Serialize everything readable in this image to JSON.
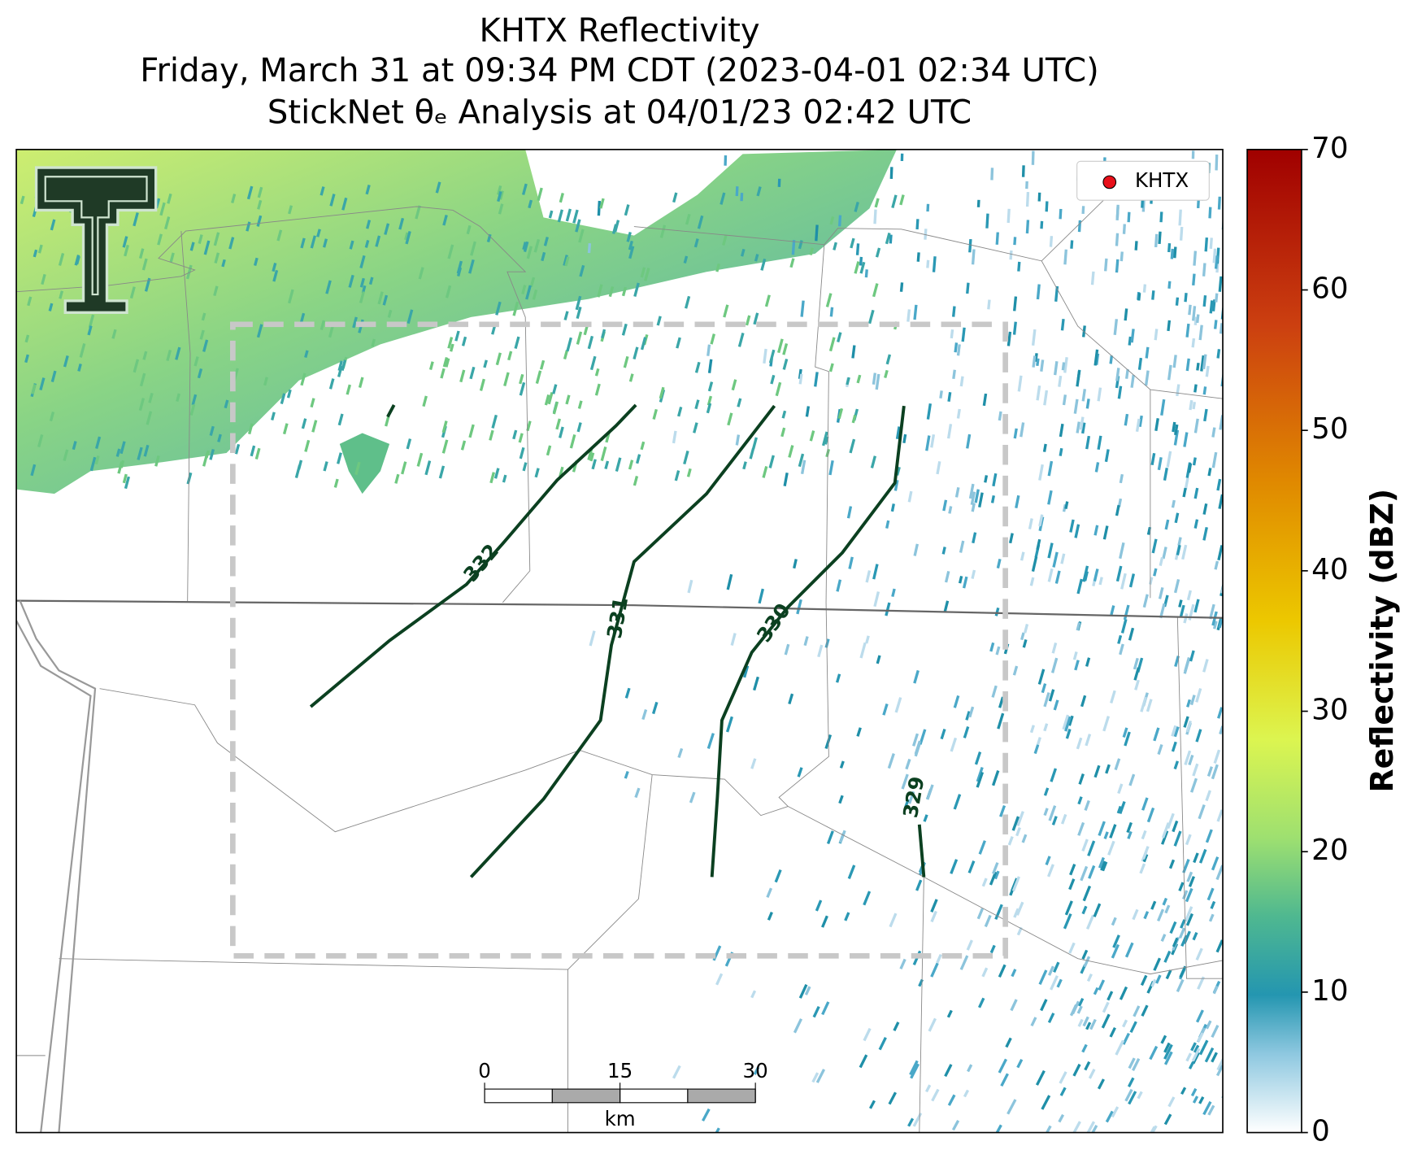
{
  "title_lines": [
    "KHTX Reflectivity",
    "Friday, March 31 at 09:34 PM CDT (2023-04-01 02:34 UTC)",
    "StickNet θₑ Analysis at 04/01/23 02:42 UTC"
  ],
  "legend": {
    "label": "KHTX",
    "color": "#e8101a"
  },
  "contours": [
    {
      "level": 332
    },
    {
      "level": 331
    },
    {
      "level": 330
    },
    {
      "level": 329
    }
  ],
  "contour_color": "#0b4020",
  "colorbar": {
    "label": "Reflectivity (dBZ)",
    "lim": [
      0,
      70
    ],
    "ticks": [
      0,
      10,
      20,
      30,
      40,
      50,
      60,
      70
    ]
  },
  "scale_bar": {
    "ticks": [
      0,
      15,
      30
    ],
    "unit": "km"
  }
}
